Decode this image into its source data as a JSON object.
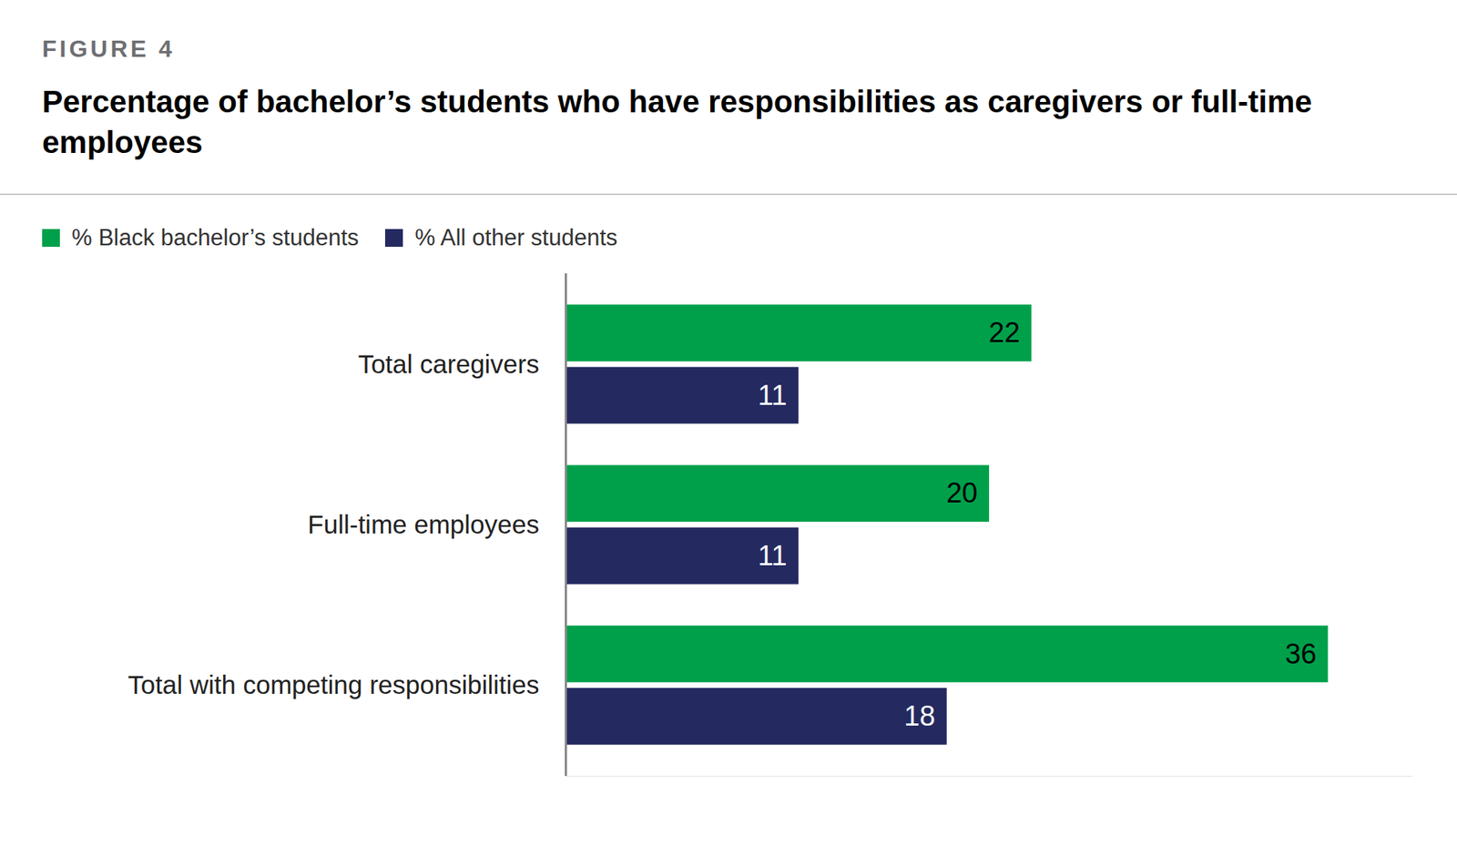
{
  "chart_data": {
    "type": "bar",
    "orientation": "horizontal",
    "figure_label": "FIGURE 4",
    "title": "Percentage of bachelor’s students who have responsibilities as caregivers or full-time employees",
    "categories": [
      "Total caregivers",
      "Full-time employees",
      "Total with competing responsibilities"
    ],
    "series": [
      {
        "name": "% Black bachelor’s students",
        "color": "#00a04b",
        "values": [
          22,
          20,
          36
        ]
      },
      {
        "name": "% All other students",
        "color": "#242a60",
        "values": [
          11,
          11,
          18
        ]
      }
    ],
    "xlim": [
      0,
      40
    ],
    "data_labels": true,
    "tick_labels": false,
    "grid": false,
    "legend": "top-left"
  }
}
